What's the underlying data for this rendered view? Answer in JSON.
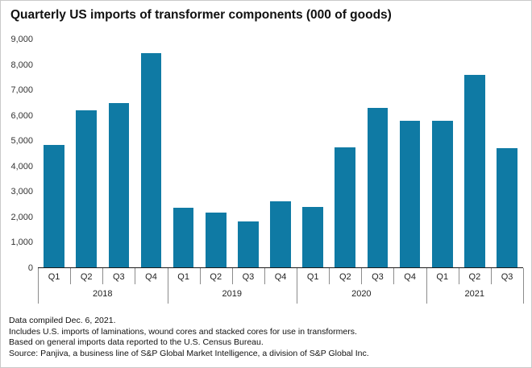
{
  "chart_data": {
    "type": "bar",
    "title": "Quarterly US imports of transformer components (000 of goods)",
    "categories": [
      "Q1",
      "Q2",
      "Q3",
      "Q4",
      "Q1",
      "Q2",
      "Q3",
      "Q4",
      "Q1",
      "Q2",
      "Q3",
      "Q4",
      "Q1",
      "Q2",
      "Q3"
    ],
    "year_groups": [
      {
        "label": "2018",
        "quarters": 4
      },
      {
        "label": "2019",
        "quarters": 4
      },
      {
        "label": "2020",
        "quarters": 4
      },
      {
        "label": "2021",
        "quarters": 3
      }
    ],
    "values": [
      4850,
      6200,
      6500,
      8450,
      2350,
      2150,
      1800,
      2600,
      2400,
      4750,
      6300,
      5800,
      5800,
      7600,
      4700
    ],
    "ylim": [
      0,
      9000
    ],
    "yticks": [
      0,
      1000,
      2000,
      3000,
      4000,
      5000,
      6000,
      7000,
      8000,
      9000
    ],
    "xlabel": "",
    "ylabel": "",
    "grid": false,
    "legend": false,
    "bar_color": "#0f7aa4"
  },
  "footnotes": [
    "Data compiled Dec. 6, 2021.",
    "Includes U.S. imports of laminations, wound cores and stacked cores for use in transformers.",
    "Based on general imports data reported to the U.S. Census Bureau.",
    "Source: Panjiva, a business line of S&P Global Market Intelligence, a division of S&P Global Inc."
  ]
}
